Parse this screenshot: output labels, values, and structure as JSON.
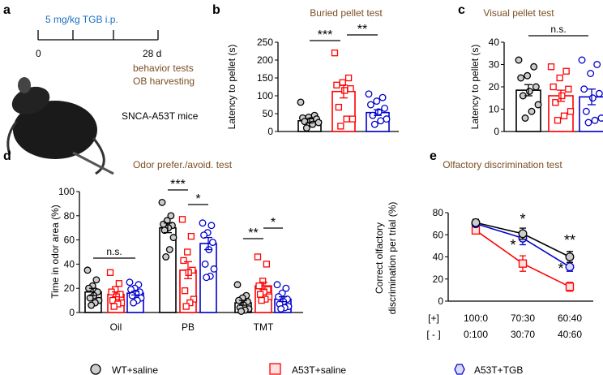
{
  "colors": {
    "wt": "#000000",
    "a53t": "#ff0000",
    "tgb": "#0000cc",
    "title": "#7a4e22",
    "timeline": "#1a6fc4",
    "wt_fill": "#cccccc",
    "a53t_fill": "#fde0e0",
    "tgb_fill": "#dadaf7"
  },
  "panel_a": {
    "label": "a",
    "treatment": "5 mg/kg TGB i.p.",
    "t0": "0",
    "t_end": "28 d",
    "event1": "behavior tests",
    "event2": "OB harvesting",
    "mouse_label": "SNCA-A53T mice"
  },
  "legend": [
    "WT+saline",
    "A53T+saline",
    "A53T+TGB"
  ],
  "chart_data": [
    {
      "panel": "b",
      "type": "bar",
      "title": "Buried pellet test",
      "ylabel": "Latency to pellet (s)",
      "ylim": [
        0,
        250
      ],
      "yticks": [
        0,
        50,
        100,
        150,
        200,
        250
      ],
      "categories": [
        "WT+saline",
        "A53T+saline",
        "A53T+TGB"
      ],
      "values": [
        30,
        112,
        53
      ],
      "errors": [
        6,
        18,
        8
      ],
      "points": [
        [
          82,
          45,
          40,
          38,
          35,
          30,
          28,
          25,
          20,
          10
        ],
        [
          220,
          150,
          137,
          130,
          120,
          115,
          68,
          35,
          35,
          15
        ],
        [
          105,
          95,
          85,
          75,
          65,
          55,
          45,
          35,
          30,
          20
        ]
      ],
      "significance": [
        {
          "from": 0,
          "to": 1,
          "label": "***"
        },
        {
          "from": 1,
          "to": 2,
          "label": "**"
        }
      ]
    },
    {
      "panel": "c",
      "type": "bar",
      "title": "Visual pellet test",
      "ylabel": "Latency to pellet (s)",
      "ylim": [
        0,
        40
      ],
      "yticks": [
        0,
        10,
        20,
        30,
        40
      ],
      "categories": [
        "WT+saline",
        "A53T+saline",
        "A53T+TGB"
      ],
      "values": [
        18.5,
        16,
        15.5
      ],
      "errors": [
        2.5,
        2.5,
        3.5
      ],
      "points": [
        [
          32,
          29,
          25,
          24,
          20,
          18,
          16,
          12,
          9,
          6
        ],
        [
          29,
          27,
          24,
          20,
          19,
          16,
          13,
          9,
          7,
          5
        ],
        [
          32,
          30,
          26,
          19,
          17,
          15,
          9,
          6,
          5,
          4
        ]
      ],
      "significance": [
        {
          "from": 0,
          "to": 2,
          "label": "n.s."
        }
      ]
    },
    {
      "panel": "d",
      "type": "bar",
      "title": "Odor prefer./avoid. test",
      "ylabel": "Time in odor area (%)",
      "ylim": [
        0,
        100
      ],
      "yticks": [
        0,
        20,
        40,
        60,
        80,
        100
      ],
      "categories": [
        "Oil",
        "PB",
        "TMT"
      ],
      "series": [
        {
          "name": "WT+saline",
          "values": [
            17,
            70,
            8
          ],
          "errors": [
            3,
            4,
            2
          ],
          "points": [
            [
              35,
              27,
              22,
              20,
              17,
              14,
              12,
              10,
              8,
              6
            ],
            [
              91,
              80,
              76,
              73,
              72,
              70,
              68,
              62,
              52,
              46
            ],
            [
              23,
              14,
              12,
              10,
              9,
              6,
              4,
              3,
              2,
              1
            ]
          ]
        },
        {
          "name": "A53T+saline",
          "values": [
            15,
            35,
            22
          ],
          "errors": [
            2,
            7,
            3
          ],
          "points": [
            [
              33,
              24,
              19,
              17,
              15,
              13,
              10,
              8,
              7,
              5
            ],
            [
              77,
              63,
              50,
              43,
              35,
              33,
              18,
              11,
              8,
              5
            ],
            [
              46,
              40,
              26,
              22,
              19,
              17,
              15,
              13,
              11,
              10
            ]
          ]
        },
        {
          "name": "A53T+TGB",
          "values": [
            16,
            57,
            11
          ],
          "errors": [
            1.5,
            5,
            2
          ],
          "points": [
            [
              25,
              23,
              20,
              19,
              17,
              16,
              14,
              12,
              10,
              8
            ],
            [
              74,
              72,
              66,
              64,
              58,
              52,
              40,
              36,
              30,
              29
            ],
            [
              23,
              20,
              16,
              13,
              11,
              9,
              7,
              5,
              4,
              3
            ]
          ]
        }
      ],
      "significance": [
        {
          "group": 0,
          "from": 0,
          "to": 2,
          "label": "n.s."
        },
        {
          "group": 1,
          "from": 0,
          "to": 1,
          "label": "***"
        },
        {
          "group": 1,
          "from": 1,
          "to": 2,
          "label": "*"
        },
        {
          "group": 2,
          "from": 0,
          "to": 1,
          "label": "**"
        },
        {
          "group": 2,
          "from": 1,
          "to": 2,
          "label": "*"
        }
      ]
    },
    {
      "panel": "e",
      "type": "line",
      "title": "Olfactory discrimination test",
      "ylabel": "Correct olfactory discrimination per trial (%)",
      "ylim": [
        0,
        80
      ],
      "yticks": [
        0,
        20,
        40,
        60,
        80
      ],
      "row_labels": [
        "[+]",
        "[ - ]"
      ],
      "x_plus": [
        "100:0",
        "70:30",
        "60:40"
      ],
      "x_minus": [
        "0:100",
        "30:70",
        "40:60"
      ],
      "series": [
        {
          "name": "WT+saline",
          "values": [
            71,
            61,
            40
          ],
          "errors": [
            3,
            5,
            5
          ]
        },
        {
          "name": "A53T+saline",
          "values": [
            64,
            34,
            13
          ],
          "errors": [
            3,
            7,
            4
          ]
        },
        {
          "name": "A53T+TGB",
          "values": [
            70,
            57,
            31
          ],
          "errors": [
            2,
            6,
            4
          ]
        }
      ],
      "annotations": [
        {
          "x": 1,
          "label": "*",
          "pos": "above"
        },
        {
          "x": 1,
          "label": "*",
          "pos": "left"
        },
        {
          "x": 2,
          "label": "**",
          "pos": "above"
        },
        {
          "x": 2,
          "label": "*",
          "pos": "left"
        }
      ]
    }
  ]
}
